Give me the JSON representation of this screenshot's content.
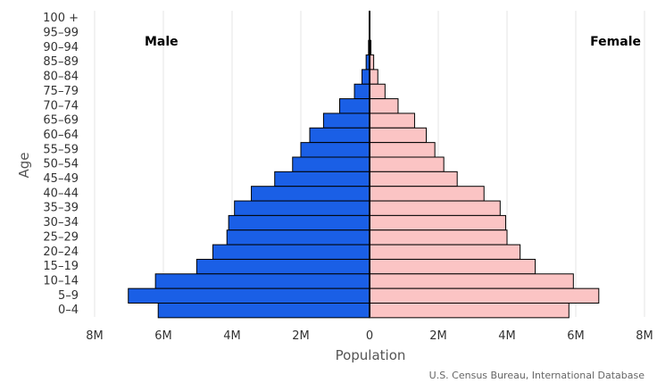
{
  "chart_data": {
    "type": "bar",
    "orientation": "horizontal",
    "layout": "population-pyramid",
    "categories": [
      "100 +",
      "95–99",
      "90–94",
      "85–89",
      "80–84",
      "75–79",
      "70–74",
      "65–69",
      "60–64",
      "55–59",
      "50–54",
      "45–49",
      "40–44",
      "35–39",
      "30–34",
      "25–29",
      "20–24",
      "15–19",
      "10–14",
      "5–9",
      "0–4"
    ],
    "series": [
      {
        "name": "Male",
        "color": "#1a5fe6",
        "values": [
          0,
          0,
          0.03,
          0.1,
          0.22,
          0.44,
          0.87,
          1.34,
          1.74,
          2.0,
          2.24,
          2.76,
          3.44,
          3.93,
          4.1,
          4.15,
          4.56,
          5.03,
          6.23,
          7.02,
          6.15
        ]
      },
      {
        "name": "Female",
        "color": "#fbc4c4",
        "values": [
          0,
          0.01,
          0.04,
          0.12,
          0.24,
          0.45,
          0.83,
          1.31,
          1.65,
          1.9,
          2.16,
          2.55,
          3.33,
          3.8,
          3.96,
          4.0,
          4.38,
          4.82,
          5.93,
          6.67,
          5.8
        ]
      }
    ],
    "unit": "M",
    "xlim": [
      -8,
      8
    ],
    "xticks": [
      {
        "value": -8,
        "label": "8M"
      },
      {
        "value": -6,
        "label": "6M"
      },
      {
        "value": -4,
        "label": "4M"
      },
      {
        "value": -2,
        "label": "2M"
      },
      {
        "value": 0,
        "label": "0"
      },
      {
        "value": 2,
        "label": "2M"
      },
      {
        "value": 4,
        "label": "4M"
      },
      {
        "value": 6,
        "label": "6M"
      },
      {
        "value": 8,
        "label": "8M"
      }
    ],
    "xlabel": "Population",
    "ylabel": "Age",
    "grid": true,
    "credit": "U.S. Census Bureau, International Database",
    "colors": {
      "grid": "#e6e6e6",
      "border": "#000000",
      "center_line": "#000000"
    }
  }
}
